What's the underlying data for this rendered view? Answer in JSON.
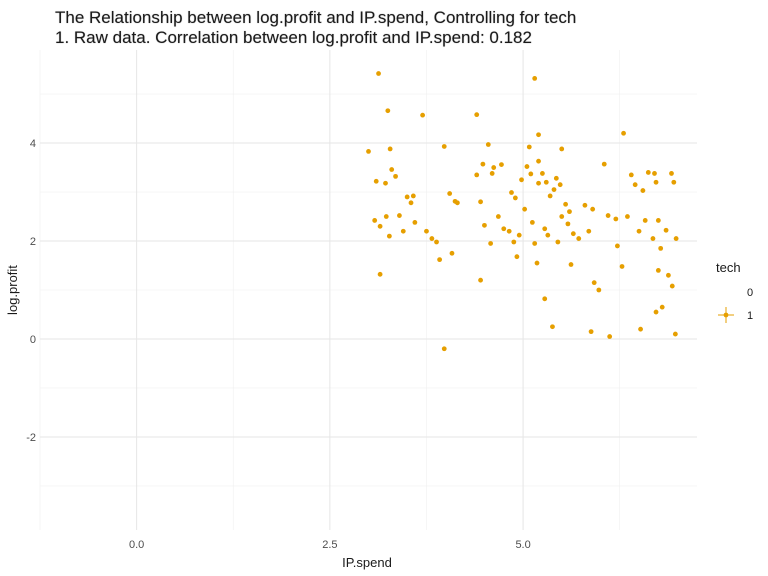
{
  "chart_data": {
    "type": "scatter",
    "title": "The Relationship between log.profit and IP.spend, Controlling for tech",
    "subtitle": "1. Raw data. Correlation between log.profit and IP.spend: 0.182",
    "xlabel": "IP.spend",
    "ylabel": "log.profit",
    "xlim": [
      -1.25,
      7.25
    ],
    "ylim": [
      -3.9,
      5.9
    ],
    "x_ticks": [
      0.0,
      2.5,
      5.0
    ],
    "x_tick_labels": [
      "0.0",
      "2.5",
      "5.0"
    ],
    "y_ticks": [
      -2,
      0,
      2,
      4
    ],
    "y_tick_labels": [
      "-2",
      "0",
      "2",
      "4"
    ],
    "grid": true,
    "legend": {
      "title": "tech",
      "placement": "right",
      "entries": [
        {
          "label": "0",
          "color": "#FFFFFF"
        },
        {
          "label": "1",
          "color": "#E69F00"
        }
      ]
    },
    "series": [
      {
        "name": "1",
        "color": "#E69F00",
        "points": [
          [
            3.13,
            5.42
          ],
          [
            5.15,
            5.32
          ],
          [
            3.25,
            4.66
          ],
          [
            3.7,
            4.57
          ],
          [
            4.4,
            4.58
          ],
          [
            5.2,
            4.17
          ],
          [
            6.3,
            4.2
          ],
          [
            3.0,
            3.83
          ],
          [
            3.28,
            3.88
          ],
          [
            3.98,
            3.93
          ],
          [
            4.55,
            3.97
          ],
          [
            5.08,
            3.92
          ],
          [
            5.5,
            3.88
          ],
          [
            5.2,
            3.63
          ],
          [
            6.05,
            3.57
          ],
          [
            3.1,
            3.22
          ],
          [
            3.22,
            3.18
          ],
          [
            3.3,
            3.46
          ],
          [
            3.35,
            3.32
          ],
          [
            3.5,
            2.9
          ],
          [
            3.55,
            2.78
          ],
          [
            3.58,
            2.92
          ],
          [
            4.05,
            2.97
          ],
          [
            4.12,
            2.81
          ],
          [
            4.4,
            3.35
          ],
          [
            4.48,
            3.57
          ],
          [
            4.6,
            3.38
          ],
          [
            4.62,
            3.5
          ],
          [
            4.72,
            3.56
          ],
          [
            4.85,
            2.99
          ],
          [
            4.9,
            2.88
          ],
          [
            4.98,
            3.25
          ],
          [
            5.05,
            3.52
          ],
          [
            5.1,
            3.37
          ],
          [
            5.2,
            3.18
          ],
          [
            5.25,
            3.38
          ],
          [
            5.3,
            3.2
          ],
          [
            5.35,
            2.92
          ],
          [
            5.4,
            3.05
          ],
          [
            5.43,
            3.28
          ],
          [
            5.48,
            3.15
          ],
          [
            5.55,
            2.75
          ],
          [
            5.6,
            2.6
          ],
          [
            5.8,
            2.73
          ],
          [
            5.9,
            2.65
          ],
          [
            6.1,
            2.52
          ],
          [
            6.2,
            2.45
          ],
          [
            6.4,
            3.35
          ],
          [
            6.45,
            3.15
          ],
          [
            6.55,
            3.03
          ],
          [
            6.62,
            3.4
          ],
          [
            6.7,
            3.38
          ],
          [
            6.72,
            3.2
          ],
          [
            6.92,
            3.38
          ],
          [
            6.95,
            3.2
          ],
          [
            3.08,
            2.42
          ],
          [
            3.15,
            2.3
          ],
          [
            3.23,
            2.5
          ],
          [
            3.27,
            2.1
          ],
          [
            3.4,
            2.52
          ],
          [
            3.45,
            2.2
          ],
          [
            3.6,
            2.38
          ],
          [
            3.75,
            2.2
          ],
          [
            3.82,
            2.05
          ],
          [
            3.88,
            1.98
          ],
          [
            3.92,
            1.62
          ],
          [
            4.08,
            1.75
          ],
          [
            4.15,
            2.78
          ],
          [
            4.45,
            2.8
          ],
          [
            4.5,
            2.32
          ],
          [
            4.58,
            1.95
          ],
          [
            4.68,
            2.5
          ],
          [
            4.75,
            2.25
          ],
          [
            4.82,
            2.2
          ],
          [
            4.88,
            1.98
          ],
          [
            4.92,
            1.68
          ],
          [
            4.95,
            2.12
          ],
          [
            5.02,
            2.65
          ],
          [
            5.12,
            2.38
          ],
          [
            5.15,
            1.95
          ],
          [
            5.18,
            1.55
          ],
          [
            5.28,
            2.25
          ],
          [
            5.32,
            2.12
          ],
          [
            5.45,
            1.98
          ],
          [
            5.5,
            2.5
          ],
          [
            5.58,
            2.35
          ],
          [
            5.62,
            1.52
          ],
          [
            5.65,
            2.15
          ],
          [
            5.72,
            2.05
          ],
          [
            5.85,
            2.2
          ],
          [
            5.92,
            1.15
          ],
          [
            5.98,
            1.0
          ],
          [
            6.22,
            1.9
          ],
          [
            6.28,
            1.48
          ],
          [
            6.35,
            2.5
          ],
          [
            6.5,
            2.2
          ],
          [
            6.58,
            2.42
          ],
          [
            6.68,
            2.05
          ],
          [
            6.75,
            2.42
          ],
          [
            6.78,
            1.85
          ],
          [
            6.85,
            2.22
          ],
          [
            6.88,
            1.3
          ],
          [
            6.93,
            1.08
          ],
          [
            6.98,
            2.05
          ],
          [
            3.15,
            1.32
          ],
          [
            4.45,
            1.2
          ],
          [
            5.28,
            0.82
          ],
          [
            5.38,
            0.25
          ],
          [
            5.88,
            0.15
          ],
          [
            6.12,
            0.05
          ],
          [
            6.52,
            0.2
          ],
          [
            6.72,
            0.55
          ],
          [
            6.8,
            0.65
          ],
          [
            6.97,
            0.1
          ],
          [
            3.98,
            -0.2
          ],
          [
            6.75,
            1.4
          ]
        ]
      }
    ]
  }
}
